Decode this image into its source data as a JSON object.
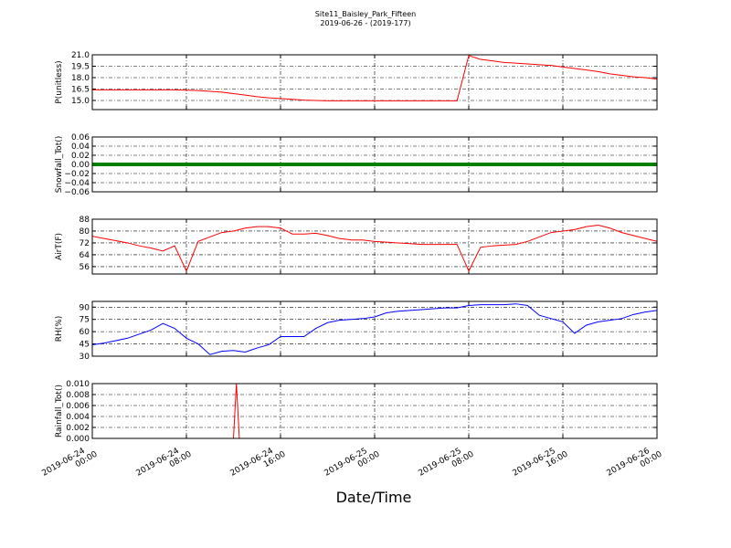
{
  "title": "Site11_Baisley_Park_Fifteen",
  "subtitle": "2019-06-26 - (2019-177)",
  "xlabel": "Date/Time",
  "xlim": [
    "2019-06-24 00:00",
    "2019-06-26 00:00"
  ],
  "xticks": [
    {
      "value": "2019-06-24 00:00",
      "label": [
        "2019-06-24",
        "00:00"
      ]
    },
    {
      "value": "2019-06-24 08:00",
      "label": [
        "2019-06-24",
        "08:00"
      ]
    },
    {
      "value": "2019-06-24 16:00",
      "label": [
        "2019-06-24",
        "16:00"
      ]
    },
    {
      "value": "2019-06-25 00:00",
      "label": [
        "2019-06-25",
        "00:00"
      ]
    },
    {
      "value": "2019-06-25 08:00",
      "label": [
        "2019-06-25",
        "08:00"
      ]
    },
    {
      "value": "2019-06-25 16:00",
      "label": [
        "2019-06-25",
        "16:00"
      ]
    },
    {
      "value": "2019-06-26 00:00",
      "label": [
        "2019-06-26",
        "00:00"
      ]
    }
  ],
  "x": [
    "2019-06-24 00:00",
    "2019-06-24 01:00",
    "2019-06-24 02:00",
    "2019-06-24 03:00",
    "2019-06-24 04:00",
    "2019-06-24 05:00",
    "2019-06-24 06:00",
    "2019-06-24 07:00",
    "2019-06-24 08:00",
    "2019-06-24 09:00",
    "2019-06-24 10:00",
    "2019-06-24 11:00",
    "2019-06-24 12:00",
    "2019-06-24 13:00",
    "2019-06-24 14:00",
    "2019-06-24 15:00",
    "2019-06-24 16:00",
    "2019-06-24 17:00",
    "2019-06-24 18:00",
    "2019-06-24 19:00",
    "2019-06-24 20:00",
    "2019-06-24 21:00",
    "2019-06-24 22:00",
    "2019-06-24 23:00",
    "2019-06-25 00:00",
    "2019-06-25 01:00",
    "2019-06-25 02:00",
    "2019-06-25 03:00",
    "2019-06-25 04:00",
    "2019-06-25 05:00",
    "2019-06-25 06:00",
    "2019-06-25 07:00",
    "2019-06-25 08:00",
    "2019-06-25 09:00",
    "2019-06-25 10:00",
    "2019-06-25 11:00",
    "2019-06-25 12:00",
    "2019-06-25 13:00",
    "2019-06-25 14:00",
    "2019-06-25 15:00",
    "2019-06-25 16:00",
    "2019-06-25 17:00",
    "2019-06-25 18:00",
    "2019-06-25 19:00",
    "2019-06-25 20:00",
    "2019-06-25 21:00",
    "2019-06-25 22:00",
    "2019-06-25 23:00",
    "2019-06-26 00:00"
  ],
  "chart_data": [
    {
      "type": "line",
      "ylabel": "P(unitless)",
      "ylim": [
        13.8,
        21
      ],
      "yticks": [
        {
          "value": 15,
          "label": "15.0"
        },
        {
          "value": 16.5,
          "label": "16.5"
        },
        {
          "value": 18,
          "label": "18.0"
        },
        {
          "value": 19.5,
          "label": "19.5"
        },
        {
          "value": 21,
          "label": "21.0"
        }
      ],
      "series": [
        {
          "color": "#ff0000",
          "width": 1,
          "values": [
            16.4,
            16.4,
            16.4,
            16.4,
            16.4,
            16.4,
            16.4,
            16.4,
            16.35,
            16.3,
            16.2,
            16.1,
            15.9,
            15.7,
            15.5,
            15.35,
            15.25,
            15.15,
            15.05,
            15.0,
            14.95,
            14.95,
            14.95,
            14.95,
            14.95,
            14.95,
            14.95,
            14.95,
            14.95,
            14.95,
            14.95,
            14.95,
            20.9,
            20.4,
            20.2,
            20.0,
            19.9,
            19.8,
            19.7,
            19.6,
            19.4,
            19.2,
            19.0,
            18.8,
            18.5,
            18.3,
            18.1,
            18.0,
            17.8
          ]
        }
      ]
    },
    {
      "type": "line",
      "ylabel": "Snowfall_Tot()",
      "ylim": [
        -0.06,
        0.06
      ],
      "yticks": [
        {
          "value": -0.06,
          "label": "−0.06"
        },
        {
          "value": -0.04,
          "label": "−0.04"
        },
        {
          "value": -0.02,
          "label": "−0.02"
        },
        {
          "value": 0,
          "label": "0.00"
        },
        {
          "value": 0.02,
          "label": "0.02"
        },
        {
          "value": 0.04,
          "label": "0.04"
        },
        {
          "value": 0.06,
          "label": "0.06"
        }
      ],
      "series": [
        {
          "color": "#008000",
          "width": 4,
          "values": [
            0,
            0,
            0,
            0,
            0,
            0,
            0,
            0,
            0,
            0,
            0,
            0,
            0,
            0,
            0,
            0,
            0,
            0,
            0,
            0,
            0,
            0,
            0,
            0,
            0,
            0,
            0,
            0,
            0,
            0,
            0,
            0,
            0,
            0,
            0,
            0,
            0,
            0,
            0,
            0,
            0,
            0,
            0,
            0,
            0,
            0,
            0,
            0,
            0
          ]
        }
      ]
    },
    {
      "type": "line",
      "ylabel": "AirT(F)",
      "ylim": [
        51,
        88
      ],
      "yticks": [
        56,
        64,
        72,
        80,
        88
      ],
      "series": [
        {
          "color": "#ff0000",
          "width": 1,
          "values": [
            76.5,
            75,
            73.5,
            72,
            70,
            68.5,
            66.5,
            70,
            53,
            73,
            76,
            79,
            80,
            82,
            83,
            83,
            82,
            78,
            78,
            78.5,
            77,
            75,
            74,
            74,
            73,
            72.5,
            72,
            71.5,
            71,
            71,
            71,
            71,
            53,
            69,
            70,
            70.5,
            71,
            73,
            76,
            79,
            80,
            81,
            83,
            84,
            82,
            79,
            77,
            75,
            73
          ]
        }
      ]
    },
    {
      "type": "line",
      "ylabel": "RH(%)",
      "ylim": [
        30,
        97
      ],
      "yticks": [
        30,
        45,
        60,
        75,
        90
      ],
      "series": [
        {
          "color": "#0000ff",
          "width": 1,
          "values": [
            44,
            46,
            49,
            52,
            57,
            62,
            70,
            64,
            52,
            45,
            32,
            36,
            37,
            35,
            40,
            44,
            54,
            54,
            54,
            64,
            71,
            74,
            75,
            76,
            78,
            83,
            85,
            86,
            87,
            88,
            89,
            89,
            92,
            93,
            93,
            93,
            94,
            92,
            80,
            76,
            72,
            58,
            68,
            72,
            74,
            76,
            81,
            84,
            86
          ]
        }
      ]
    },
    {
      "type": "line",
      "ylabel": "Rainfall_Tot()",
      "ylim": [
        0,
        0.01
      ],
      "yticks": [
        {
          "value": 0,
          "label": "0.000"
        },
        {
          "value": 0.002,
          "label": "0.002"
        },
        {
          "value": 0.004,
          "label": "0.004"
        },
        {
          "value": 0.006,
          "label": "0.006"
        },
        {
          "value": 0.008,
          "label": "0.008"
        },
        {
          "value": 0.01,
          "label": "0.010"
        }
      ],
      "x": [
        "2019-06-24 00:00",
        "2019-06-24 12:00",
        "2019-06-24 12:15",
        "2019-06-24 12:30",
        "2019-06-26 00:00"
      ],
      "series": [
        {
          "color": "#ff0000",
          "width": 1,
          "values": [
            0,
            0,
            0.01,
            0,
            0
          ]
        }
      ]
    }
  ]
}
